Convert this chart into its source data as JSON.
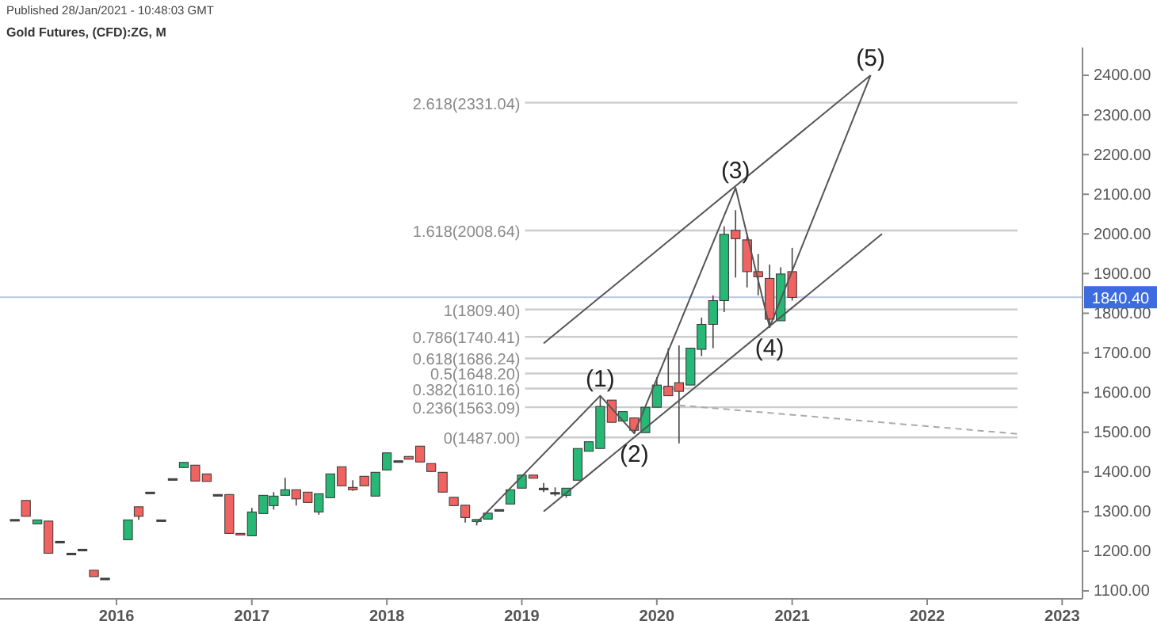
{
  "chart_data": {
    "type": "candlestick",
    "title": "Gold Futures, (CFD):ZG, M",
    "annotations": [
      "Published 28/Jan/2021 - 10:48:03 GMT",
      {
        "text": "(1)",
        "x": "2019-08",
        "y": 1592
      },
      {
        "text": "(2)",
        "x": "2019-11",
        "y": 1497
      },
      {
        "text": "(3)",
        "x": "2020-08",
        "y": 2116
      },
      {
        "text": "(4)",
        "x": "2020-11",
        "y": 1765
      },
      {
        "text": "(5)",
        "x": "2021-08",
        "y": 2400
      }
    ],
    "x": [
      "2015-04",
      "2015-05",
      "2015-06",
      "2015-07",
      "2015-08",
      "2015-09",
      "2015-10",
      "2015-11",
      "2015-12",
      "2016-02",
      "2016-03",
      "2016-04",
      "2016-05",
      "2016-06",
      "2016-07",
      "2016-08",
      "2016-09",
      "2016-10",
      "2016-11",
      "2016-12",
      "2017-01",
      "2017-02",
      "2017-03",
      "2017-04",
      "2017-05",
      "2017-06",
      "2017-07",
      "2017-08",
      "2017-09",
      "2017-10",
      "2017-11",
      "2017-12",
      "2018-01",
      "2018-02",
      "2018-03",
      "2018-04",
      "2018-05",
      "2018-06",
      "2018-07",
      "2018-08",
      "2018-09",
      "2018-10",
      "2018-11",
      "2018-12",
      "2019-01",
      "2019-02",
      "2019-03",
      "2019-04",
      "2019-05",
      "2019-06",
      "2019-07",
      "2019-08",
      "2019-09",
      "2019-10",
      "2019-11",
      "2019-12",
      "2020-01",
      "2020-02",
      "2020-03",
      "2020-04",
      "2020-05",
      "2020-06",
      "2020-07",
      "2020-08",
      "2020-09",
      "2020-10",
      "2020-11",
      "2020-12",
      "2021-01"
    ],
    "ohlc": [
      [
        1280,
        1280,
        1280,
        1280
      ],
      [
        1328,
        1328,
        1288,
        1288
      ],
      [
        1269,
        1279,
        1269,
        1279
      ],
      [
        1276,
        1276,
        1195,
        1195
      ],
      [
        1225,
        1225,
        1225,
        1225
      ],
      [
        1195,
        1195,
        1195,
        1195
      ],
      [
        1205,
        1205,
        1205,
        1205
      ],
      [
        1152,
        1152,
        1136,
        1136
      ],
      [
        1132,
        1132,
        1132,
        1132
      ],
      [
        1229,
        1279,
        1229,
        1279
      ],
      [
        1312,
        1312,
        1279,
        1288
      ],
      [
        1349,
        1349,
        1349,
        1349
      ],
      [
        1279,
        1279,
        1279,
        1279
      ],
      [
        1383,
        1383,
        1383,
        1383
      ],
      [
        1411,
        1424,
        1411,
        1424
      ],
      [
        1417,
        1417,
        1377,
        1377
      ],
      [
        1395,
        1395,
        1376,
        1376
      ],
      [
        1343,
        1343,
        1343,
        1343
      ],
      [
        1343,
        1343,
        1245,
        1245
      ],
      [
        1245,
        1245,
        1241,
        1241
      ],
      [
        1239,
        1309,
        1239,
        1299
      ],
      [
        1295,
        1341,
        1295,
        1341
      ],
      [
        1315,
        1349,
        1305,
        1339
      ],
      [
        1341,
        1385,
        1341,
        1355
      ],
      [
        1355,
        1355,
        1315,
        1332
      ],
      [
        1349,
        1349,
        1323,
        1323
      ],
      [
        1299,
        1345,
        1292,
        1345
      ],
      [
        1335,
        1395,
        1335,
        1395
      ],
      [
        1413,
        1413,
        1365,
        1365
      ],
      [
        1361,
        1379,
        1352,
        1355
      ],
      [
        1389,
        1389,
        1365,
        1365
      ],
      [
        1339,
        1399,
        1339,
        1399
      ],
      [
        1405,
        1448,
        1405,
        1448
      ],
      [
        1428,
        1428,
        1428,
        1428
      ],
      [
        1439,
        1439,
        1432,
        1432
      ],
      [
        1465,
        1465,
        1425,
        1425
      ],
      [
        1421,
        1421,
        1401,
        1401
      ],
      [
        1399,
        1399,
        1349,
        1349
      ],
      [
        1336,
        1336,
        1315,
        1315
      ],
      [
        1316,
        1316,
        1272,
        1285
      ],
      [
        1275,
        1280,
        1265,
        1280
      ],
      [
        1281,
        1296,
        1281,
        1296
      ],
      [
        1305,
        1305,
        1305,
        1305
      ],
      [
        1319,
        1355,
        1319,
        1355
      ],
      [
        1359,
        1392,
        1359,
        1392
      ],
      [
        1392,
        1392,
        1384,
        1384
      ],
      [
        1359,
        1372,
        1349,
        1359
      ],
      [
        1348,
        1361,
        1339,
        1348
      ],
      [
        1341,
        1359,
        1335,
        1359
      ],
      [
        1379,
        1459,
        1379,
        1459
      ],
      [
        1452,
        1476,
        1452,
        1476
      ],
      [
        1459,
        1592,
        1459,
        1565
      ],
      [
        1581,
        1581,
        1525,
        1525
      ],
      [
        1528,
        1552,
        1528,
        1552
      ],
      [
        1536,
        1536,
        1497,
        1505
      ],
      [
        1499,
        1563,
        1499,
        1563
      ],
      [
        1563,
        1639,
        1563,
        1619
      ],
      [
        1616,
        1712,
        1592,
        1592
      ],
      [
        1625,
        1719,
        1472,
        1603
      ],
      [
        1619,
        1712,
        1619,
        1712
      ],
      [
        1709,
        1789,
        1692,
        1772
      ],
      [
        1772,
        1845,
        1712,
        1832
      ],
      [
        1832,
        2019,
        1803,
        1999
      ],
      [
        2009,
        2060,
        1890,
        1988
      ],
      [
        1985,
        1999,
        1865,
        1905
      ],
      [
        1905,
        1949,
        1845,
        1892
      ],
      [
        1888,
        1923,
        1765,
        1785
      ],
      [
        1781,
        1916,
        1781,
        1899
      ],
      [
        1905,
        1965,
        1832,
        1840
      ]
    ],
    "colors": [
      "#4a4a4a",
      "#ef6461",
      "#26b874",
      "#ef6461",
      "#4a4a4a",
      "#4a4a4a",
      "#4a4a4a",
      "#ef6461",
      "#4a4a4a",
      "#26b874",
      "#ef6461",
      "#4a4a4a",
      "#4a4a4a",
      "#4a4a4a",
      "#26b874",
      "#ef6461",
      "#ef6461",
      "#4a4a4a",
      "#ef6461",
      "#ef6461",
      "#26b874",
      "#26b874",
      "#26b874",
      "#26b874",
      "#ef6461",
      "#ef6461",
      "#26b874",
      "#26b874",
      "#ef6461",
      "#ef6461",
      "#ef6461",
      "#26b874",
      "#26b874",
      "#4a4a4a",
      "#ef6461",
      "#ef6461",
      "#ef6461",
      "#ef6461",
      "#ef6461",
      "#ef6461",
      "#26b874",
      "#26b874",
      "#4a4a4a",
      "#26b874",
      "#26b874",
      "#ef6461",
      "#4a4a4a",
      "#4a4a4a",
      "#26b874",
      "#26b874",
      "#26b874",
      "#26b874",
      "#ef6461",
      "#26b874",
      "#ef6461",
      "#26b874",
      "#26b874",
      "#ef6461",
      "#ef6461",
      "#26b874",
      "#26b874",
      "#26b874",
      "#26b874",
      "#ef6461",
      "#ef6461",
      "#ef6461",
      "#ef6461",
      "#26b874",
      "#ef6461"
    ],
    "series": [
      {
        "type": "line",
        "color": "#555555",
        "x": [
          "2018-09",
          "2019-08",
          "2019-11",
          "2020-08",
          "2020-11",
          "2021-08"
        ],
        "values": [
          1272,
          1592,
          1497,
          2116,
          1765,
          2400
        ]
      },
      {
        "type": "line",
        "color": "#555555",
        "x": [
          "2019-03",
          "2021-08"
        ],
        "values": [
          1724,
          2400
        ]
      },
      {
        "type": "line",
        "color": "#555555",
        "x": [
          "2019-03",
          "2021-09"
        ],
        "values": [
          1300,
          2000
        ]
      },
      {
        "type": "line",
        "color": "#aaaaaa",
        "line_style": "dashed",
        "x": [
          "2020-03",
          "2022-09"
        ],
        "values": [
          1568,
          1496
        ]
      }
    ],
    "ref_lines": [
      {
        "axis": "y",
        "value": 1840.4,
        "label": "1840.40",
        "color": "#b8c6e6"
      },
      {
        "axis": "y",
        "value": 1487,
        "label": "0(1487.00)",
        "color": "#cccccc"
      },
      {
        "axis": "y",
        "value": 1563.09,
        "label": "0.236(1563.09)",
        "color": "#cccccc"
      },
      {
        "axis": "y",
        "value": 1610.16,
        "label": "0.382(1610.16)",
        "color": "#cccccc"
      },
      {
        "axis": "y",
        "value": 1648.2,
        "label": "0.5(1648.20)",
        "color": "#cccccc"
      },
      {
        "axis": "y",
        "value": 1686.24,
        "label": "0.618(1686.24)",
        "color": "#cccccc"
      },
      {
        "axis": "y",
        "value": 1740.41,
        "label": "0.786(1740.41)",
        "color": "#cccccc"
      },
      {
        "axis": "y",
        "value": 1809.4,
        "label": "1(1809.40)",
        "color": "#cccccc"
      },
      {
        "axis": "y",
        "value": 2008.64,
        "label": "1.618(2008.64)",
        "color": "#cccccc"
      },
      {
        "axis": "y",
        "value": 2331.04,
        "label": "2.618(2331.04)",
        "color": "#cccccc"
      }
    ],
    "xlim": [
      "2015-02-20",
      "2023-02-25"
    ],
    "xticks": [
      "2016",
      "2017",
      "2018",
      "2019",
      "2020",
      "2021",
      "2022",
      "2023"
    ],
    "ylim": [
      1080,
      2470
    ],
    "yticks": [
      {
        "value": 1100,
        "label": "1100.00"
      },
      {
        "value": 1200,
        "label": "1200.00"
      },
      {
        "value": 1300,
        "label": "1300.00"
      },
      {
        "value": 1400,
        "label": "1400.00"
      },
      {
        "value": 1500,
        "label": "1500.00"
      },
      {
        "value": 1600,
        "label": "1600.00"
      },
      {
        "value": 1700,
        "label": "1700.00"
      },
      {
        "value": 1800,
        "label": "1800.00"
      },
      {
        "value": 1900,
        "label": "1900.00"
      },
      {
        "value": 2000,
        "label": "2000.00"
      },
      {
        "value": 2100,
        "label": "2100.00"
      },
      {
        "value": 2200,
        "label": "2200.00"
      },
      {
        "value": 2300,
        "label": "2300.00"
      },
      {
        "value": 2400,
        "label": "2400.00"
      }
    ],
    "grid": false
  }
}
